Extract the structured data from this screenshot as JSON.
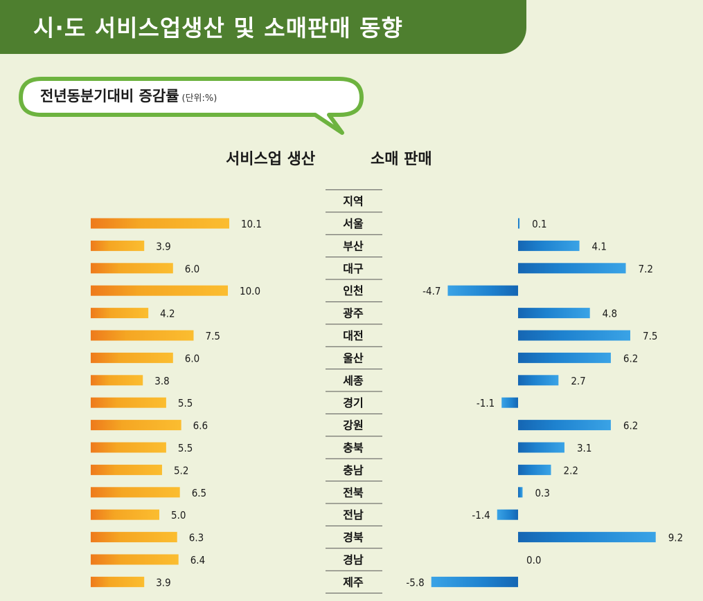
{
  "header": {
    "title": "시·도 서비스업생산 및 소매판매 동향"
  },
  "subtitle": {
    "text": "전년동분기대비 증감률",
    "unit": "(단위:%)"
  },
  "chart_data": {
    "type": "bar",
    "orientation": "horizontal",
    "categories_header": "지역",
    "categories": [
      "서울",
      "부산",
      "대구",
      "인천",
      "광주",
      "대전",
      "울산",
      "세종",
      "경기",
      "강원",
      "충북",
      "충남",
      "전북",
      "전남",
      "경북",
      "경남",
      "제주"
    ],
    "series": [
      {
        "name": "서비스업 생산",
        "color": "#f5a623",
        "values": [
          10.1,
          3.9,
          6.0,
          10.0,
          4.2,
          7.5,
          6.0,
          3.8,
          5.5,
          6.6,
          5.5,
          5.2,
          6.5,
          5.0,
          6.3,
          6.4,
          3.9
        ],
        "labels": [
          "10.1",
          "3.9",
          "6.0",
          "10.0",
          "4.2",
          "7.5",
          "6.0",
          "3.8",
          "5.5",
          "6.6",
          "5.5",
          "5.2",
          "6.5",
          "5.0",
          "6.3",
          "6.4",
          "3.9"
        ]
      },
      {
        "name": "소매 판매",
        "color": "#1f87d0",
        "values": [
          0.1,
          4.1,
          7.2,
          -4.7,
          4.8,
          7.5,
          6.2,
          2.7,
          -1.1,
          6.2,
          3.1,
          2.2,
          0.3,
          -1.4,
          9.2,
          0.0,
          -5.8
        ],
        "labels": [
          "0.1",
          "4.1",
          "7.2",
          "-4.7",
          "4.8",
          "7.5",
          "6.2",
          "2.7",
          "-1.1",
          "6.2",
          "3.1",
          "2.2",
          "0.3",
          "-1.4",
          "9.2",
          "0.0",
          "-5.8"
        ]
      }
    ]
  }
}
